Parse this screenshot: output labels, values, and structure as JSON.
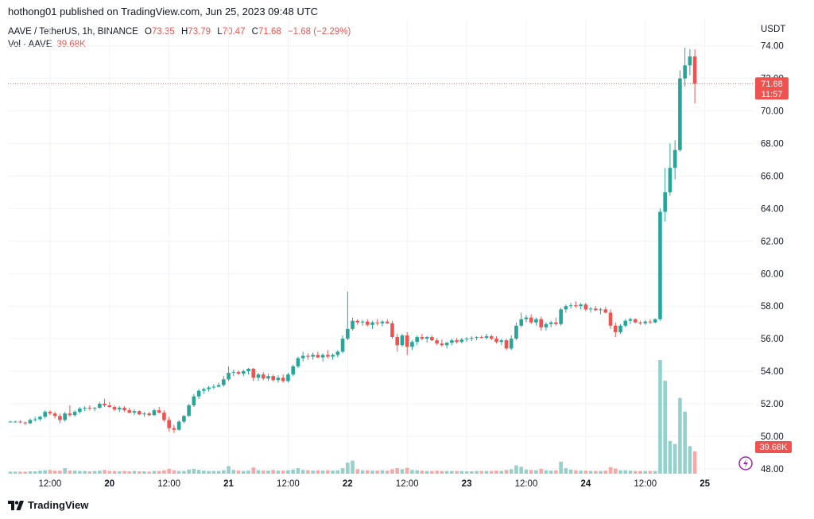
{
  "header": {
    "published_by": "hothong01 published on TradingView.com, Jun 25, 2023 09:48 UTC"
  },
  "legend": {
    "symbol": "AAVE / TetherUS, 1h, BINANCE",
    "open_label": "O",
    "open": "73.35",
    "high_label": "H",
    "high": "73.79",
    "low_label": "L",
    "low": "70.47",
    "close_label": "C",
    "close": "71.68",
    "change": "−1.68 (−2.29%)",
    "volume_label": "Vol · AAVE",
    "volume": "39.68K"
  },
  "price_tag": {
    "price": "71.68",
    "countdown": "11:57"
  },
  "volume_tag": "39.68K",
  "footer": {
    "brand": "TradingView"
  },
  "colors": {
    "up": "#26a69a",
    "down": "#ef5350",
    "up_vol": "#94d1cc",
    "down_vol": "#f7a9a7",
    "grid": "#f0f3fa"
  },
  "chart_data": {
    "type": "candlestick",
    "unit": "USDT",
    "ylim": [
      47.7,
      75.6
    ],
    "y_ticks": [
      "48.00",
      "50.00",
      "52.00",
      "54.00",
      "56.00",
      "58.00",
      "60.00",
      "62.00",
      "64.00",
      "66.00",
      "68.00",
      "70.00",
      "72.00",
      "74.00"
    ],
    "x_ticks": [
      {
        "label": "12:00",
        "index": 8
      },
      {
        "label": "20",
        "index": 20
      },
      {
        "label": "12:00",
        "index": 32
      },
      {
        "label": "21",
        "index": 44
      },
      {
        "label": "12:00",
        "index": 56
      },
      {
        "label": "22",
        "index": 68
      },
      {
        "label": "12:00",
        "index": 80
      },
      {
        "label": "23",
        "index": 92
      },
      {
        "label": "12:00",
        "index": 104
      },
      {
        "label": "24",
        "index": 116
      },
      {
        "label": "12:00",
        "index": 128
      },
      {
        "label": "25",
        "index": 140
      }
    ],
    "last_price": 71.68,
    "candles": [
      [
        50.9,
        50.95,
        50.85,
        50.9
      ],
      [
        50.9,
        50.95,
        50.85,
        50.9
      ],
      [
        50.9,
        51.0,
        50.8,
        50.85
      ],
      [
        50.85,
        50.9,
        50.7,
        50.8
      ],
      [
        50.8,
        51.1,
        50.75,
        51.0
      ],
      [
        51.0,
        51.2,
        50.9,
        51.05
      ],
      [
        51.05,
        51.25,
        50.95,
        51.2
      ],
      [
        51.2,
        51.6,
        51.1,
        51.5
      ],
      [
        51.5,
        51.6,
        51.3,
        51.4
      ],
      [
        51.4,
        51.5,
        51.1,
        51.25
      ],
      [
        51.25,
        51.4,
        50.8,
        51.0
      ],
      [
        51.0,
        51.5,
        50.9,
        51.4
      ],
      [
        51.4,
        51.9,
        51.2,
        51.3
      ],
      [
        51.3,
        51.6,
        51.2,
        51.5
      ],
      [
        51.5,
        51.8,
        51.4,
        51.7
      ],
      [
        51.7,
        51.85,
        51.55,
        51.75
      ],
      [
        51.75,
        51.9,
        51.6,
        51.7
      ],
      [
        51.7,
        51.8,
        51.55,
        51.75
      ],
      [
        51.75,
        52.1,
        51.7,
        52.0
      ],
      [
        52.0,
        52.3,
        51.8,
        51.9
      ],
      [
        51.9,
        52.1,
        51.75,
        51.8
      ],
      [
        51.8,
        51.9,
        51.55,
        51.65
      ],
      [
        51.65,
        51.85,
        51.5,
        51.75
      ],
      [
        51.75,
        51.85,
        51.5,
        51.6
      ],
      [
        51.6,
        51.75,
        51.4,
        51.45
      ],
      [
        51.45,
        51.65,
        51.3,
        51.55
      ],
      [
        51.55,
        51.6,
        51.3,
        51.35
      ],
      [
        51.35,
        51.5,
        51.2,
        51.4
      ],
      [
        51.4,
        51.5,
        51.25,
        51.3
      ],
      [
        51.3,
        51.7,
        51.25,
        51.6
      ],
      [
        51.6,
        51.8,
        51.4,
        51.45
      ],
      [
        51.45,
        51.6,
        50.9,
        51.0
      ],
      [
        51.0,
        51.2,
        50.3,
        50.5
      ],
      [
        50.5,
        50.7,
        50.2,
        50.4
      ],
      [
        50.4,
        51.0,
        50.35,
        50.9
      ],
      [
        50.9,
        51.3,
        50.8,
        51.25
      ],
      [
        51.25,
        52.0,
        51.2,
        51.9
      ],
      [
        51.9,
        52.6,
        51.8,
        52.45
      ],
      [
        52.45,
        52.9,
        52.3,
        52.8
      ],
      [
        52.8,
        53.0,
        52.6,
        52.9
      ],
      [
        52.9,
        53.1,
        52.75,
        53.0
      ],
      [
        53.0,
        53.2,
        52.9,
        53.05
      ],
      [
        53.05,
        53.3,
        53.0,
        53.15
      ],
      [
        53.15,
        53.7,
        53.05,
        53.5
      ],
      [
        53.5,
        54.3,
        53.4,
        53.9
      ],
      [
        53.9,
        54.1,
        53.7,
        53.95
      ],
      [
        53.95,
        54.05,
        53.75,
        53.85
      ],
      [
        53.85,
        54.1,
        53.7,
        54.0
      ],
      [
        54.0,
        54.2,
        53.8,
        54.15
      ],
      [
        54.15,
        54.2,
        53.4,
        53.6
      ],
      [
        53.6,
        53.9,
        53.4,
        53.8
      ],
      [
        53.8,
        53.95,
        53.45,
        53.55
      ],
      [
        53.55,
        53.85,
        53.4,
        53.7
      ],
      [
        53.7,
        53.8,
        53.35,
        53.45
      ],
      [
        53.45,
        53.75,
        53.3,
        53.6
      ],
      [
        53.6,
        53.8,
        53.3,
        53.4
      ],
      [
        53.4,
        53.9,
        53.3,
        53.8
      ],
      [
        53.8,
        54.4,
        53.7,
        54.3
      ],
      [
        54.3,
        54.9,
        54.2,
        54.8
      ],
      [
        54.8,
        55.2,
        54.6,
        54.95
      ],
      [
        54.95,
        55.1,
        54.7,
        54.9
      ],
      [
        54.9,
        55.15,
        54.7,
        55.0
      ],
      [
        55.0,
        55.2,
        54.8,
        54.85
      ],
      [
        54.85,
        55.1,
        54.6,
        55.0
      ],
      [
        55.0,
        55.3,
        54.8,
        54.9
      ],
      [
        54.9,
        55.1,
        54.7,
        55.0
      ],
      [
        55.0,
        55.3,
        54.85,
        55.2
      ],
      [
        55.2,
        56.2,
        55.1,
        56.0
      ],
      [
        56.0,
        58.9,
        55.9,
        56.6
      ],
      [
        56.6,
        57.3,
        56.5,
        57.1
      ],
      [
        57.1,
        57.2,
        56.85,
        57.0
      ],
      [
        57.0,
        57.15,
        56.8,
        57.05
      ],
      [
        57.05,
        57.2,
        56.75,
        56.85
      ],
      [
        56.85,
        57.1,
        56.6,
        57.0
      ],
      [
        57.0,
        57.2,
        56.8,
        56.95
      ],
      [
        56.95,
        57.15,
        56.75,
        57.05
      ],
      [
        57.05,
        57.2,
        56.9,
        56.95
      ],
      [
        56.95,
        57.1,
        56.0,
        56.1
      ],
      [
        56.1,
        56.3,
        55.2,
        55.6
      ],
      [
        55.6,
        56.3,
        55.5,
        56.2
      ],
      [
        56.2,
        56.4,
        55.0,
        55.5
      ],
      [
        55.5,
        55.9,
        55.3,
        55.8
      ],
      [
        55.8,
        56.2,
        55.6,
        56.1
      ],
      [
        56.1,
        56.3,
        55.9,
        56.0
      ],
      [
        56.0,
        56.15,
        55.75,
        56.1
      ],
      [
        56.1,
        56.2,
        55.85,
        55.9
      ],
      [
        55.9,
        56.05,
        55.6,
        55.7
      ],
      [
        55.7,
        55.95,
        55.5,
        55.6
      ],
      [
        55.6,
        55.8,
        55.4,
        55.75
      ],
      [
        55.75,
        56.0,
        55.6,
        55.9
      ],
      [
        55.9,
        56.05,
        55.7,
        55.8
      ],
      [
        55.8,
        56.05,
        55.7,
        55.95
      ],
      [
        55.95,
        56.1,
        55.8,
        56.0
      ],
      [
        56.0,
        56.15,
        55.85,
        56.05
      ],
      [
        56.05,
        56.15,
        55.9,
        56.1
      ],
      [
        56.1,
        56.2,
        56.0,
        56.05
      ],
      [
        56.05,
        56.3,
        55.95,
        56.15
      ],
      [
        56.15,
        56.25,
        55.9,
        56.0
      ],
      [
        56.0,
        56.15,
        55.7,
        55.8
      ],
      [
        55.8,
        56.0,
        55.6,
        55.9
      ],
      [
        55.9,
        56.0,
        55.3,
        55.4
      ],
      [
        55.4,
        56.2,
        55.3,
        56.0
      ],
      [
        56.0,
        57.0,
        55.9,
        56.8
      ],
      [
        56.8,
        57.6,
        56.7,
        57.2
      ],
      [
        57.2,
        57.45,
        57.0,
        57.3
      ],
      [
        57.3,
        57.5,
        56.9,
        57.0
      ],
      [
        57.0,
        57.3,
        56.8,
        57.2
      ],
      [
        57.2,
        57.35,
        56.5,
        56.7
      ],
      [
        56.7,
        57.0,
        56.5,
        56.9
      ],
      [
        56.9,
        57.1,
        56.7,
        57.0
      ],
      [
        57.0,
        57.3,
        56.8,
        56.9
      ],
      [
        56.9,
        57.9,
        56.8,
        57.8
      ],
      [
        57.8,
        58.1,
        57.6,
        58.0
      ],
      [
        58.0,
        58.2,
        57.85,
        58.05
      ],
      [
        58.05,
        58.3,
        57.9,
        58.0
      ],
      [
        58.0,
        58.2,
        57.8,
        58.1
      ],
      [
        58.1,
        58.2,
        57.7,
        57.8
      ],
      [
        57.8,
        57.95,
        57.6,
        57.85
      ],
      [
        57.85,
        58.0,
        57.7,
        57.75
      ],
      [
        57.75,
        57.9,
        57.5,
        57.8
      ],
      [
        57.8,
        57.95,
        57.55,
        57.6
      ],
      [
        57.6,
        57.8,
        56.6,
        56.8
      ],
      [
        56.8,
        57.0,
        56.1,
        56.4
      ],
      [
        56.4,
        56.9,
        56.3,
        56.8
      ],
      [
        56.8,
        57.2,
        56.7,
        57.1
      ],
      [
        57.1,
        57.3,
        56.9,
        57.2
      ],
      [
        57.2,
        57.25,
        56.95,
        57.0
      ],
      [
        57.0,
        57.1,
        56.85,
        56.95
      ],
      [
        56.95,
        57.15,
        56.85,
        57.05
      ],
      [
        57.05,
        57.2,
        56.9,
        57.0
      ],
      [
        57.0,
        57.25,
        56.95,
        57.2
      ],
      [
        57.2,
        64.0,
        57.1,
        63.8
      ],
      [
        63.8,
        66.5,
        63.2,
        65.0
      ],
      [
        65.0,
        68.0,
        64.8,
        66.5
      ],
      [
        66.5,
        68.2,
        65.8,
        67.6
      ],
      [
        67.6,
        72.5,
        67.5,
        72.0
      ],
      [
        72.0,
        73.9,
        71.5,
        72.8
      ],
      [
        72.8,
        73.8,
        72.2,
        73.35
      ],
      [
        73.35,
        73.79,
        70.47,
        71.68
      ]
    ],
    "volumes": [
      0.6,
      0.6,
      0.6,
      0.6,
      0.7,
      0.7,
      0.9,
      1.0,
      1.1,
      0.9,
      0.9,
      1.6,
      0.9,
      0.9,
      0.8,
      0.8,
      0.7,
      0.8,
      0.9,
      1.1,
      0.8,
      0.8,
      0.7,
      0.8,
      0.7,
      0.8,
      0.7,
      0.7,
      0.6,
      0.8,
      0.8,
      1.0,
      1.4,
      1.0,
      0.8,
      0.8,
      1.2,
      1.4,
      1.1,
      0.9,
      0.8,
      0.8,
      0.8,
      1.0,
      2.2,
      1.1,
      0.9,
      0.8,
      0.9,
      1.8,
      1.0,
      0.9,
      0.9,
      1.1,
      0.9,
      0.9,
      1.0,
      1.2,
      1.6,
      1.1,
      1.0,
      0.9,
      1.0,
      0.9,
      1.0,
      0.9,
      1.0,
      1.6,
      3.2,
      3.8,
      1.3,
      1.0,
      1.0,
      0.9,
      0.9,
      1.0,
      0.9,
      1.3,
      1.6,
      1.3,
      1.7,
      1.1,
      1.0,
      0.9,
      0.8,
      0.8,
      0.9,
      0.8,
      0.8,
      0.8,
      0.8,
      0.8,
      0.7,
      0.7,
      0.8,
      0.8,
      0.8,
      0.8,
      0.9,
      0.8,
      1.1,
      1.3,
      2.4,
      2.0,
      1.2,
      1.1,
      1.0,
      1.4,
      1.0,
      0.9,
      1.0,
      3.5,
      1.6,
      1.2,
      1.0,
      0.9,
      0.9,
      0.8,
      0.8,
      0.8,
      0.9,
      1.9,
      1.5,
      1.0,
      1.0,
      0.9,
      0.8,
      0.8,
      0.8,
      0.8,
      0.8,
      33.0,
      27.0,
      9.5,
      8.6,
      22.0,
      18.0,
      8.0,
      6.5
    ],
    "volume_scale_max": 33.0
  }
}
